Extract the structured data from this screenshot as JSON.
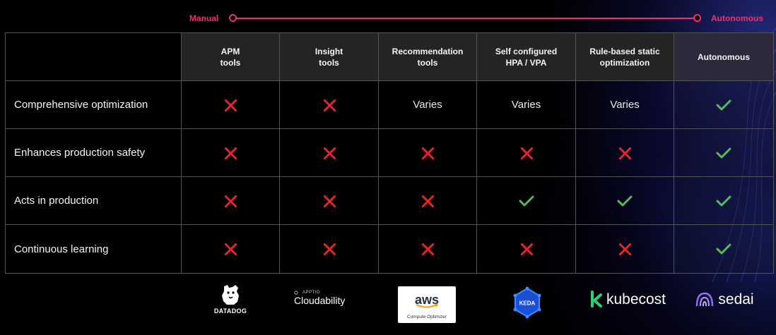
{
  "scale": {
    "left_label": "Manual",
    "right_label": "Autonomous",
    "color": "#f0306a"
  },
  "table": {
    "columns": [
      "APM\ntools",
      "Insight\ntools",
      "Recommendation\ntools",
      "Self configured\nHPA / VPA",
      "Rule-based static\noptimization",
      "Autonomous"
    ],
    "rows": [
      {
        "label": "Comprehensive optimization",
        "cells": [
          "x",
          "x",
          "Varies",
          "Varies",
          "Varies",
          "check"
        ]
      },
      {
        "label": "Enhances production safety",
        "cells": [
          "x",
          "x",
          "x",
          "x",
          "x",
          "check"
        ]
      },
      {
        "label": "Acts in production",
        "cells": [
          "x",
          "x",
          "x",
          "check",
          "check",
          "check"
        ]
      },
      {
        "label": "Continuous learning",
        "cells": [
          "x",
          "x",
          "x",
          "x",
          "x",
          "check"
        ]
      }
    ],
    "icons": {
      "x": "cross-icon",
      "check": "checkmark-icon"
    },
    "colors": {
      "cross": "#e8222b",
      "check": "#5cb85c",
      "header_bg": "#242424"
    }
  },
  "logos": {
    "datadog": {
      "text": "DATADOG",
      "icon": "datadog-dog-icon"
    },
    "cloudability": {
      "small": "APPTIO",
      "text": "Cloudability"
    },
    "aws": {
      "text": "aws",
      "sub": "Compute Optimizer"
    },
    "keda": {
      "text": "KEDA",
      "icon": "keda-hexagon-icon"
    },
    "kubecost": {
      "text": "kubecost",
      "icon": "kubecost-k-icon"
    },
    "sedai": {
      "text": "sedai",
      "icon": "sedai-waves-icon"
    }
  }
}
